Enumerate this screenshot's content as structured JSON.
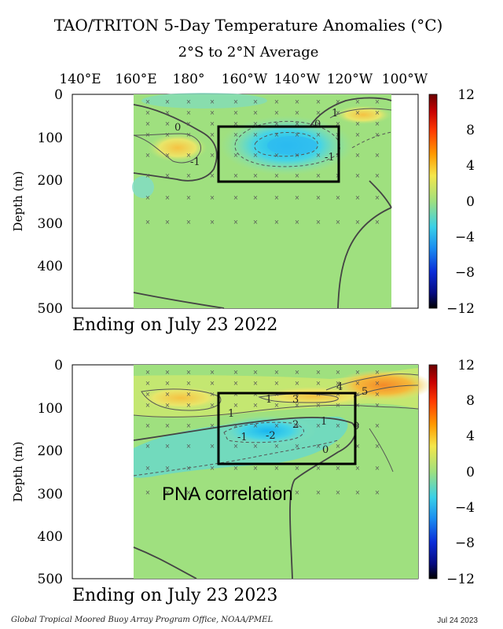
{
  "header": {
    "title": "TAO/TRITON 5-Day Temperature Anomalies (°C)",
    "subtitle": "2°S to 2°N Average",
    "x_ticks": [
      "140°E",
      "160°E",
      "180°",
      "160°W",
      "140°W",
      "120°W",
      "100°W"
    ]
  },
  "colors": {
    "background_green": "#9fe07f",
    "cyan": "#45d4e6",
    "yellow": "#f2e66a",
    "orange": "#f5a23a",
    "box": "#000000"
  },
  "colorbar": {
    "ticks": [
      "12",
      "8",
      "4",
      "0",
      "−4",
      "−8",
      "−12"
    ]
  },
  "footer": {
    "credit": "Global Tropical Moored Buoy Array Program Office, NOAA/PMEL",
    "date": "Jul 24 2023"
  },
  "chart_data": [
    {
      "type": "heatmap",
      "title": "",
      "xlabel": "",
      "ylabel": "Depth (m)",
      "ylim": [
        0,
        500
      ],
      "y_ticks": [
        "0",
        "100",
        "200",
        "300",
        "400",
        "500"
      ],
      "period_label": "Ending on July 23 2022",
      "contour_labels": [
        "0",
        "-1",
        "0",
        "-1",
        "1"
      ],
      "box": {
        "lon_range": [
          "170°W",
          "122°W"
        ],
        "depth_range": [
          80,
          205
        ]
      },
      "annotation": ""
    },
    {
      "type": "heatmap",
      "title": "",
      "xlabel": "",
      "ylabel": "Depth (m)",
      "ylim": [
        0,
        500
      ],
      "y_ticks": [
        "0",
        "100",
        "200",
        "300",
        "400",
        "500"
      ],
      "period_label": "Ending on July 23 2023",
      "contour_labels": [
        "1",
        "1",
        "3",
        "4",
        "5",
        "-1",
        "2",
        "-2",
        "1",
        "0",
        "0"
      ],
      "box": {
        "lon_range": [
          "170°W",
          "118°W"
        ],
        "depth_range": [
          65,
          235
        ]
      },
      "annotation": "PNA correlation"
    }
  ]
}
